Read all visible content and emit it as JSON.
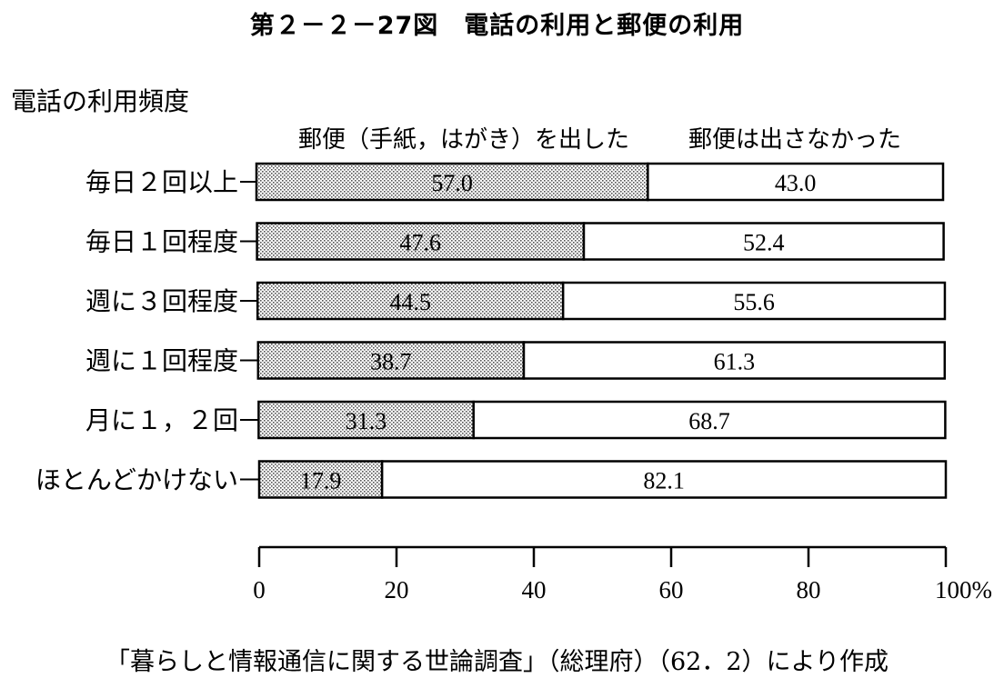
{
  "title": "第２－２－27図　電話の利用と郵便の利用",
  "source": "「暮らしと情報通信に関する世論調査」（総理府）（62．2）により作成",
  "chart_data": {
    "type": "bar",
    "orientation": "horizontal",
    "stacked": true,
    "y_axis_label": "電話の利用頻度",
    "categories": [
      "毎日２回以上",
      "毎日１回程度",
      "週に３回程度",
      "週に１回程度",
      "月に１，２回",
      "ほとんどかけない"
    ],
    "series": [
      {
        "name": "郵便（手紙，はがき）を出した",
        "values": [
          57.0,
          47.6,
          44.5,
          38.7,
          31.3,
          17.9
        ],
        "fill": "dotted-gray"
      },
      {
        "name": "郵便は出さなかった",
        "values": [
          43.0,
          52.4,
          55.6,
          61.3,
          68.7,
          82.1
        ],
        "fill": "white"
      }
    ],
    "value_labels": [
      [
        "57.0",
        "47.6",
        "44.5",
        "38.7",
        "31.3",
        "17.9"
      ],
      [
        "43.0",
        "52.4",
        "55.6",
        "61.3",
        "68.7",
        "82.1"
      ]
    ],
    "xlim": [
      0,
      100
    ],
    "x_ticks": [
      0,
      20,
      40,
      60,
      80,
      100
    ],
    "x_tick_labels": [
      "0",
      "20",
      "40",
      "60",
      "80",
      "100%"
    ],
    "grid": false,
    "legend": "top"
  }
}
